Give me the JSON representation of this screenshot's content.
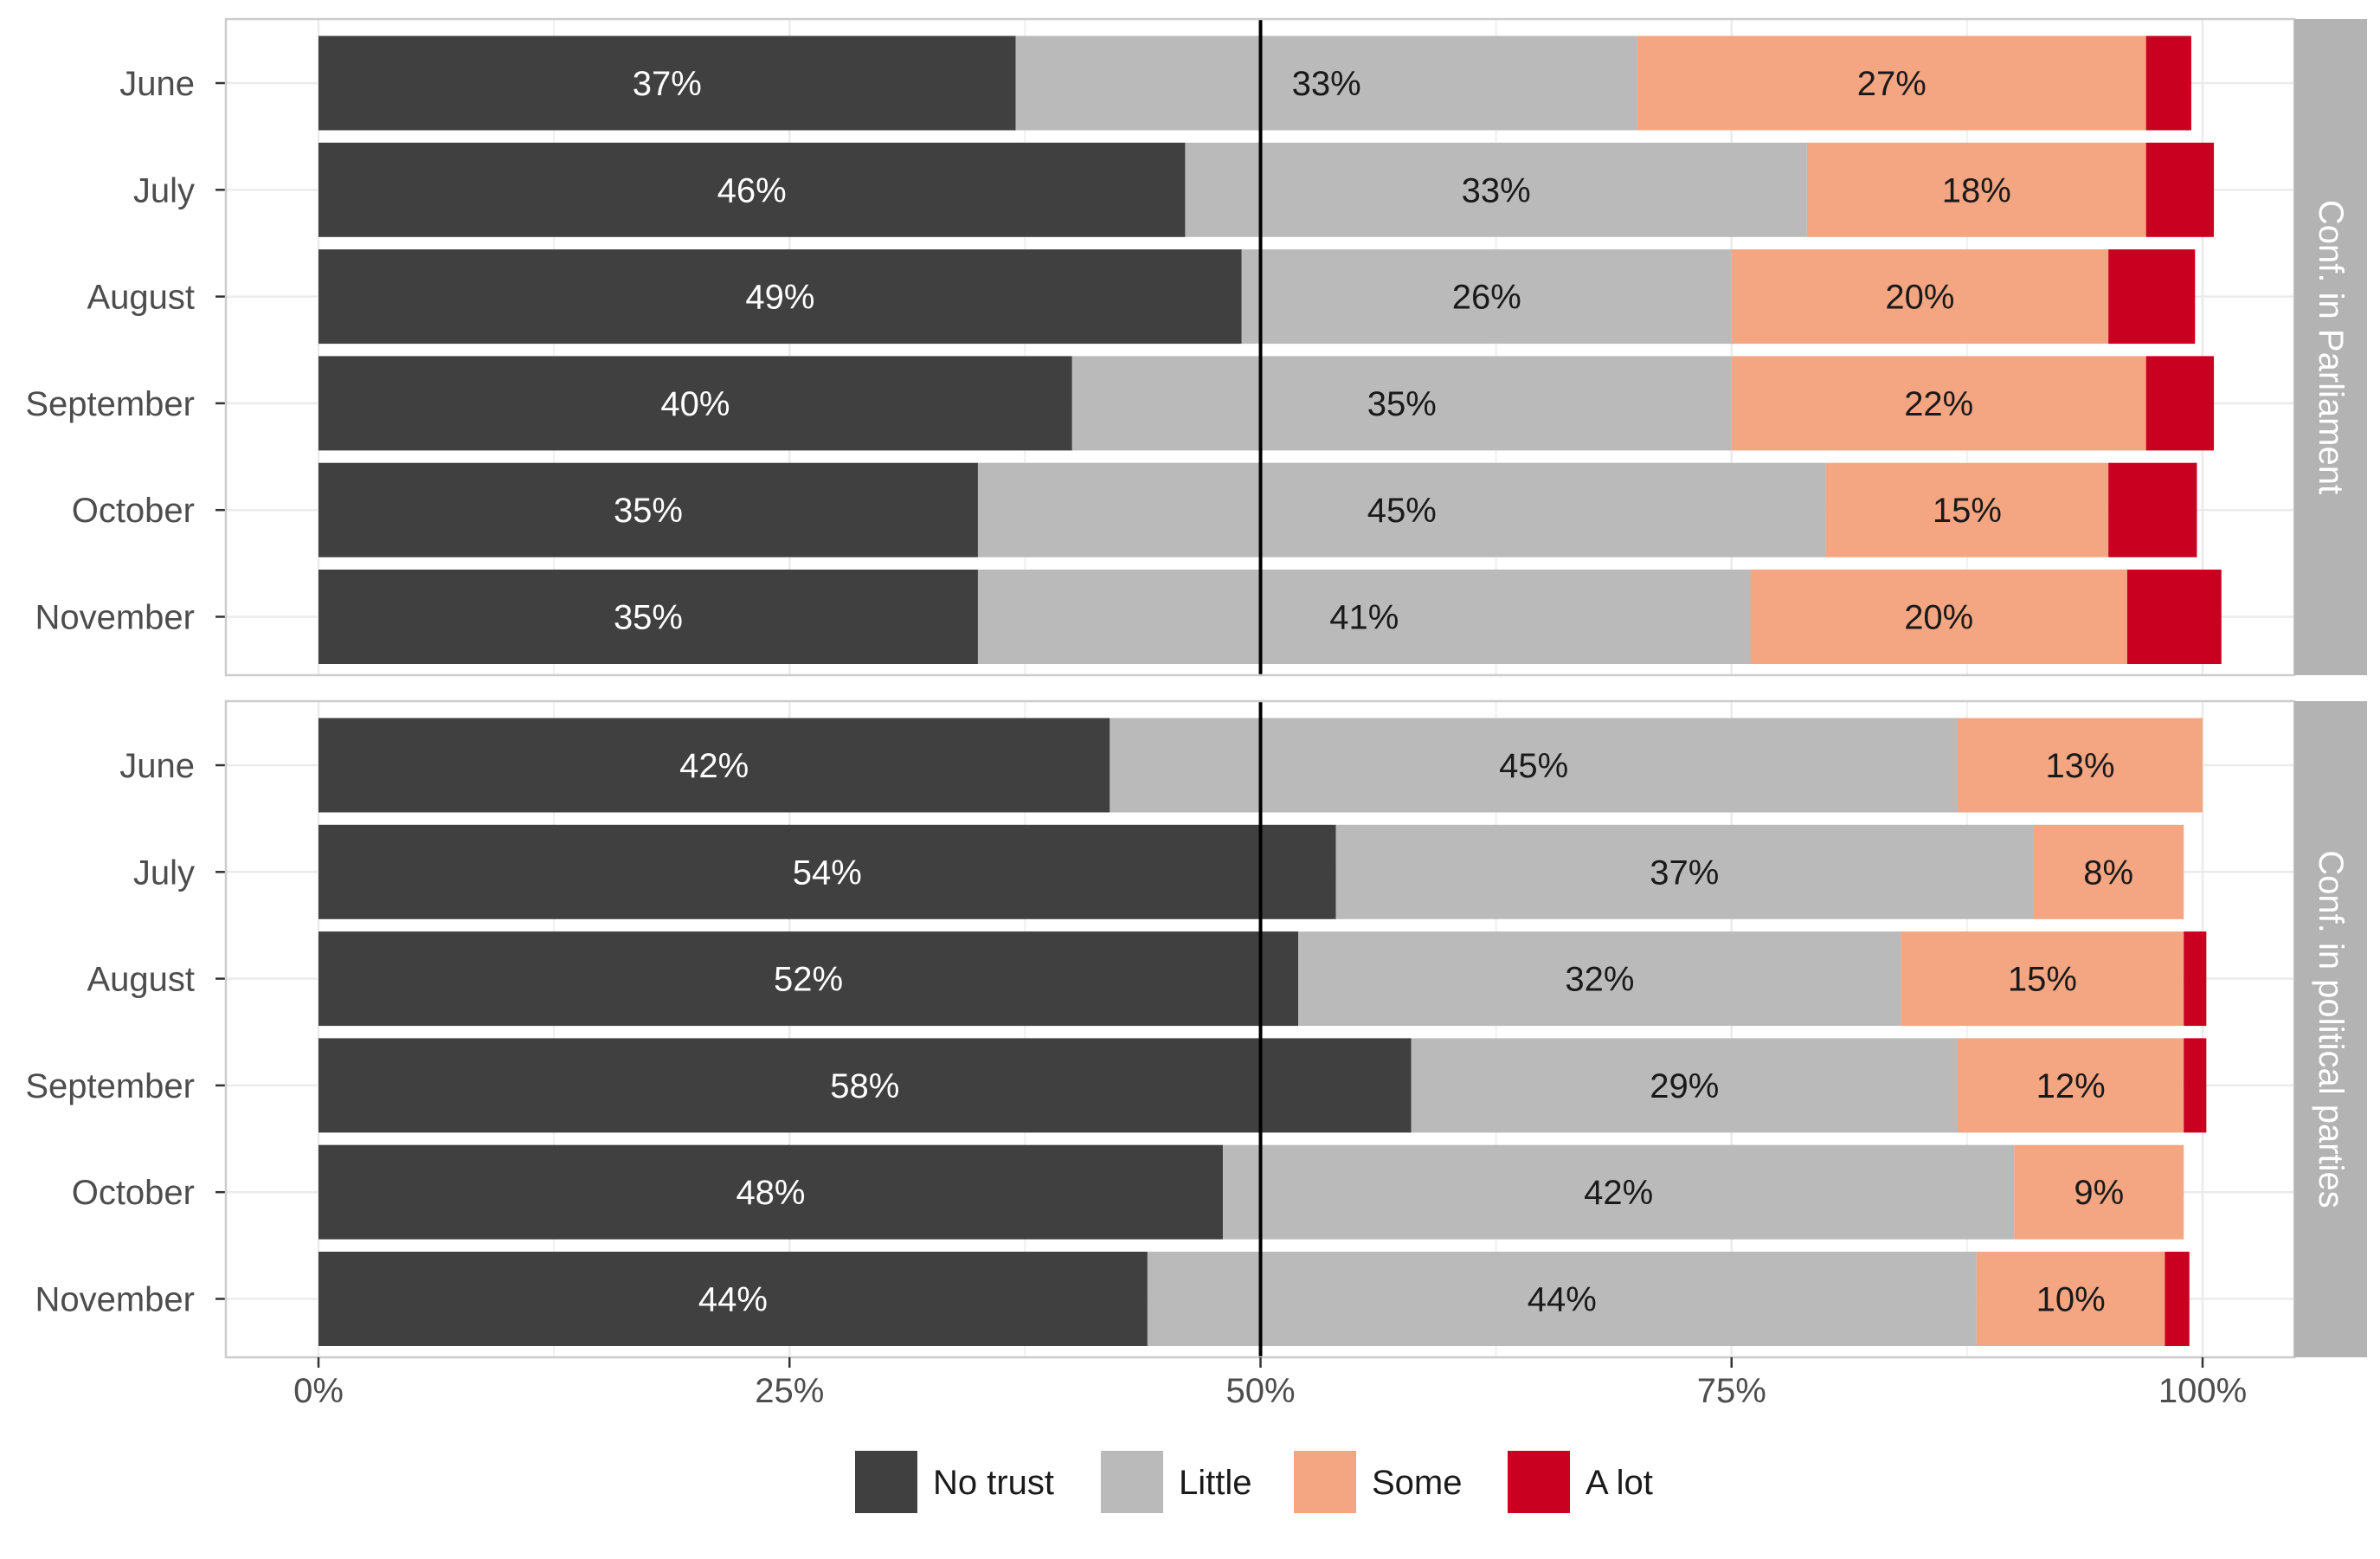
{
  "chart_data": {
    "type": "bar",
    "orientation": "horizontal",
    "stacked": true,
    "xlim": [
      0,
      100
    ],
    "x_ticks": [
      0,
      25,
      50,
      75,
      100
    ],
    "x_tick_labels": [
      "0%",
      "25%",
      "50%",
      "75%",
      "100%"
    ],
    "reference_line": 50,
    "grid": true,
    "legend_position": "bottom",
    "legend": [
      {
        "name": "No trust",
        "color": "#404040"
      },
      {
        "name": "Little",
        "color": "#bababa"
      },
      {
        "name": "Some",
        "color": "#f4a582"
      },
      {
        "name": "A lot",
        "color": "#ca0020"
      }
    ],
    "panels": [
      {
        "strip_label": "Conf. in Parliament",
        "categories": [
          "June",
          "July",
          "August",
          "September",
          "October",
          "November"
        ],
        "series": [
          {
            "name": "No trust",
            "values": [
              37,
              46,
              49,
              40,
              35,
              35
            ],
            "labels": [
              "37%",
              "46%",
              "49%",
              "40%",
              "35%",
              "35%"
            ]
          },
          {
            "name": "Little",
            "values": [
              33,
              33,
              26,
              35,
              45,
              41
            ],
            "labels": [
              "33%",
              "33%",
              "26%",
              "35%",
              "45%",
              "41%"
            ]
          },
          {
            "name": "Some",
            "values": [
              27,
              18,
              20,
              22,
              15,
              20
            ],
            "labels": [
              "27%",
              "18%",
              "20%",
              "22%",
              "15%",
              "20%"
            ]
          },
          {
            "name": "A lot",
            "values": [
              2.4,
              3.6,
              4.6,
              3.6,
              4.7,
              5
            ],
            "labels": [
              "",
              "",
              "",
              "",
              "",
              ""
            ]
          }
        ]
      },
      {
        "strip_label": "Conf. in political parties",
        "categories": [
          "June",
          "July",
          "August",
          "September",
          "October",
          "November"
        ],
        "series": [
          {
            "name": "No trust",
            "values": [
              42,
              54,
              52,
              58,
              48,
              44
            ],
            "labels": [
              "42%",
              "54%",
              "52%",
              "58%",
              "48%",
              "44%"
            ]
          },
          {
            "name": "Little",
            "values": [
              45,
              37,
              32,
              29,
              42,
              44
            ],
            "labels": [
              "45%",
              "37%",
              "32%",
              "29%",
              "42%",
              "44%"
            ]
          },
          {
            "name": "Some",
            "values": [
              13,
              8,
              15,
              12,
              9,
              10
            ],
            "labels": [
              "13%",
              "8%",
              "15%",
              "12%",
              "9%",
              "10%"
            ]
          },
          {
            "name": "A lot",
            "values": [
              0,
              0,
              1.2,
              1.2,
              0,
              1.3
            ],
            "labels": [
              "",
              "",
              "",
              "",
              "",
              ""
            ]
          }
        ]
      }
    ]
  }
}
